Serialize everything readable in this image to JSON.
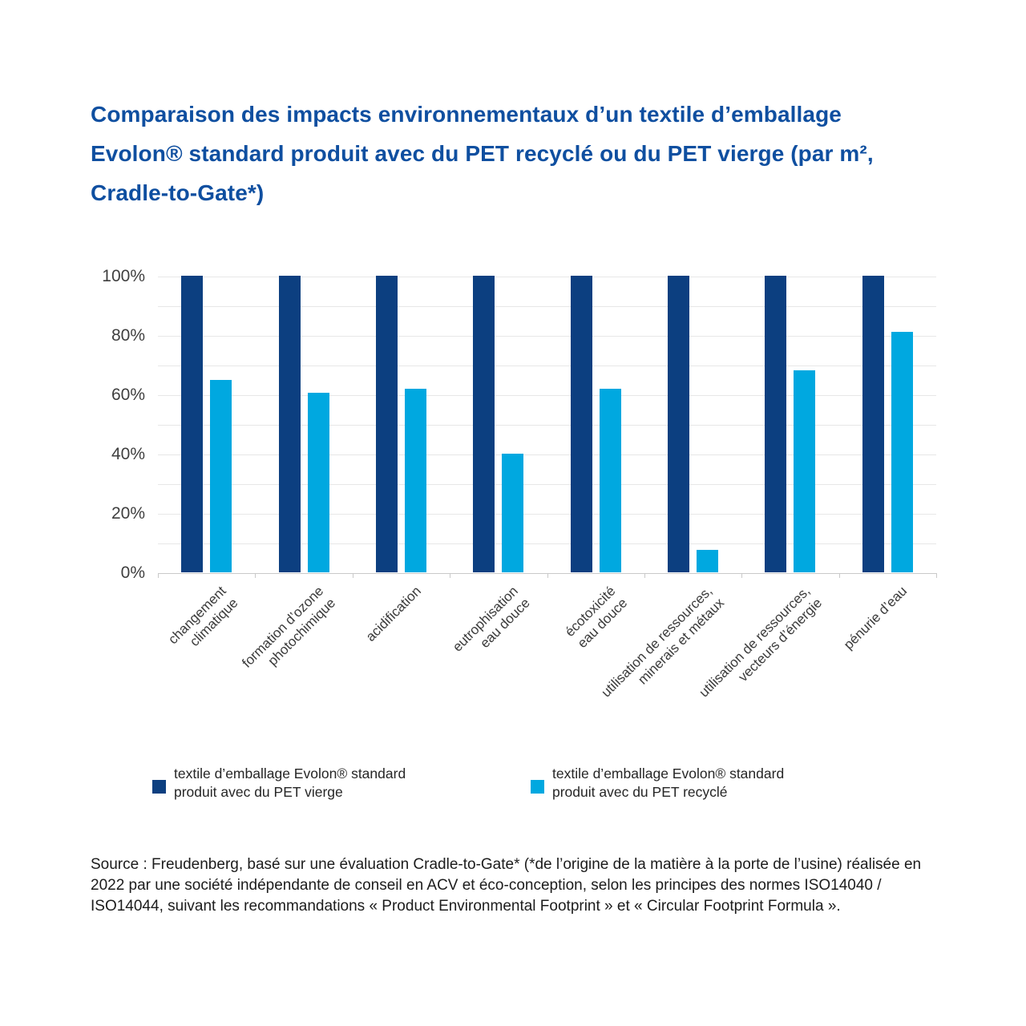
{
  "title": {
    "full": "Comparaison des impacts environnementaux d’un textile d’emballage Evolon® standard produit avec du PET recyclé ou du PET vierge (par m², Cradle-to-Gate*)",
    "lines": [
      "Comparaison des impacts environnementaux d’un textile d’emballage",
      "Evolon® standard produit avec du PET recyclé ou du PET vierge (par m²,",
      "Cradle-to-Gate*)"
    ],
    "color": "#0f4fa0"
  },
  "colors": {
    "pet_vierge": "#0c3f80",
    "pet_recycle": "#00a8e0",
    "gridline": "#e7e7e7",
    "axis_line": "#c9c9c9",
    "axis_text": "#3f3f3f"
  },
  "chart_data": {
    "type": "bar",
    "title": "",
    "categories": [
      "changement climatique",
      "formation d’ozone photochimique",
      "acidification",
      "eutrophisation eau douce",
      "écotoxicité eau douce",
      "utilisation de ressources, minerais et métaux",
      "utilisation de ressources, vecteurs d’énergie",
      "pénurie d’eau"
    ],
    "categories_wrapped": [
      [
        "changement",
        "climatique"
      ],
      [
        "formation d’ozone",
        "photochimique"
      ],
      [
        "acidification"
      ],
      [
        "eutrophisation",
        "eau douce"
      ],
      [
        "écotoxicité",
        "eau douce"
      ],
      [
        "utilisation de ressources,",
        "minerais et métaux"
      ],
      [
        "utilisation de ressources,",
        "vecteurs d’énergie"
      ],
      [
        "pénurie d’eau"
      ]
    ],
    "series": [
      {
        "name": "textile d’emballage Evolon® standard produit avec du PET vierge",
        "color": "#0c3f80",
        "values": [
          100,
          100,
          100,
          100,
          100,
          100,
          100,
          100
        ]
      },
      {
        "name": "textile d’emballage Evolon® standard produit avec du PET recyclé",
        "color": "#00a8e0",
        "values": [
          65,
          60.5,
          62,
          40,
          62,
          7.5,
          68,
          81
        ]
      }
    ],
    "xlabel": "",
    "ylabel": "",
    "ylim": [
      0,
      100
    ],
    "grid": "horizontal",
    "grid_step": 10,
    "yticks": [
      {
        "value": 0,
        "label": "0%"
      },
      {
        "value": 20,
        "label": "20%"
      },
      {
        "value": 40,
        "label": "40%"
      },
      {
        "value": 60,
        "label": "60%"
      },
      {
        "value": 80,
        "label": "80%"
      },
      {
        "value": 100,
        "label": "100%"
      }
    ],
    "legend_position": "bottom"
  },
  "legend": {
    "items": [
      {
        "lines": [
          "textile d’emballage Evolon® standard",
          "produit avec du PET vierge"
        ],
        "color": "#0c3f80"
      },
      {
        "lines": [
          "textile d’emballage Evolon® standard",
          "produit avec du PET recyclé"
        ],
        "color": "#00a8e0"
      }
    ]
  },
  "source": "Source : Freudenberg, basé sur une évaluation Cradle-to-Gate* (*de l’origine de la matière à la porte de l’usine) réalisée en 2022 par une société indépendante de conseil en ACV et éco-conception, selon les principes des normes ISO14040 / ISO14044, suivant les recommandations « Product Environmental Footprint » et « Circular Footprint Formula »."
}
